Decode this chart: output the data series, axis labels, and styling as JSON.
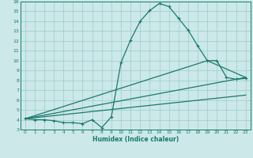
{
  "xlabel": "Humidex (Indice chaleur)",
  "xlim": [
    -0.5,
    23.5
  ],
  "ylim": [
    3,
    16
  ],
  "xticks": [
    0,
    1,
    2,
    3,
    4,
    5,
    6,
    7,
    8,
    9,
    10,
    11,
    12,
    13,
    14,
    15,
    16,
    17,
    18,
    19,
    20,
    21,
    22,
    23
  ],
  "yticks": [
    3,
    4,
    5,
    6,
    7,
    8,
    9,
    10,
    11,
    12,
    13,
    14,
    15,
    16
  ],
  "bg_color": "#cce8e8",
  "grid_color": "#99cccc",
  "line_color": "#1a7a6e",
  "line1_x": [
    0,
    1,
    2,
    3,
    4,
    5,
    6,
    7,
    8,
    9,
    10,
    11,
    12,
    13,
    14,
    15,
    16,
    17,
    18,
    19,
    20,
    21,
    22,
    23
  ],
  "line1_y": [
    4.1,
    4.0,
    4.0,
    3.9,
    3.7,
    3.7,
    3.6,
    4.0,
    3.2,
    4.3,
    9.8,
    12.1,
    14.0,
    15.1,
    15.8,
    15.5,
    14.3,
    13.1,
    11.5,
    10.0,
    10.0,
    8.3,
    8.1,
    8.2
  ],
  "line2_x": [
    0,
    23
  ],
  "line2_y": [
    4.1,
    8.3
  ],
  "line3_x": [
    0,
    19,
    23
  ],
  "line3_y": [
    4.1,
    10.0,
    8.3
  ],
  "line4_x": [
    0,
    23
  ],
  "line4_y": [
    4.1,
    6.5
  ]
}
